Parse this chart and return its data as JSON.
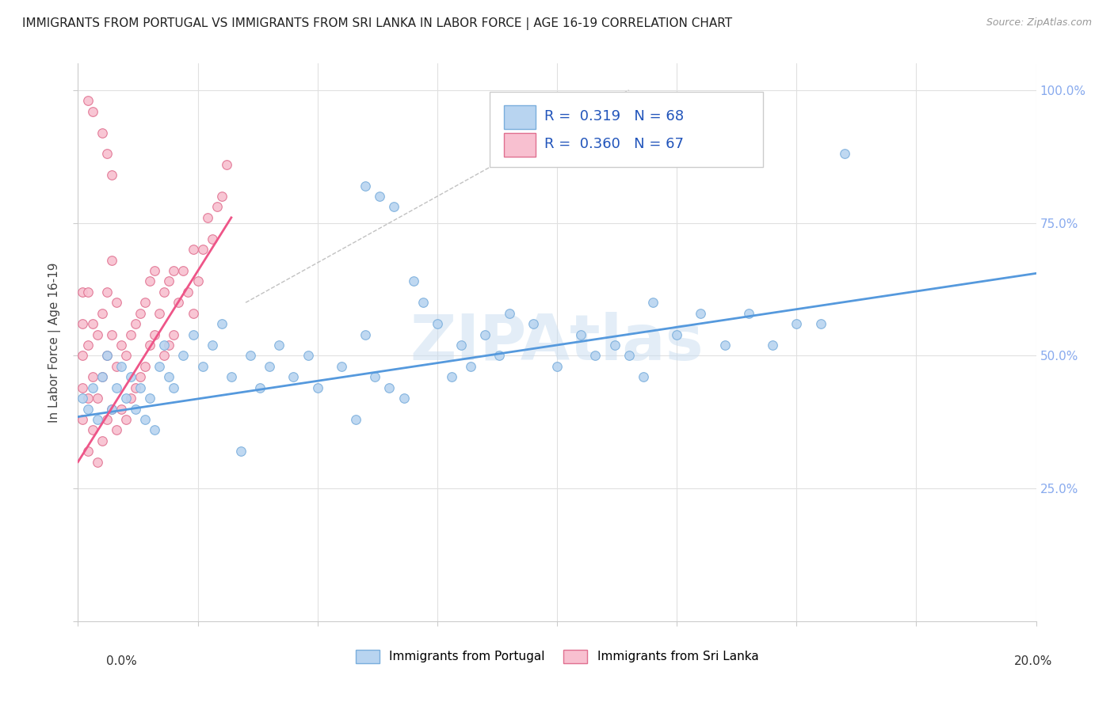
{
  "title": "IMMIGRANTS FROM PORTUGAL VS IMMIGRANTS FROM SRI LANKA IN LABOR FORCE | AGE 16-19 CORRELATION CHART",
  "source": "Source: ZipAtlas.com",
  "ylabel": "In Labor Force | Age 16-19",
  "xlim": [
    0.0,
    0.2
  ],
  "ylim": [
    0.0,
    1.05
  ],
  "watermark": "ZIPAtlas",
  "legend_box": {
    "portugal_color": "#b8d4f0",
    "portugal_edge": "#7aaedc",
    "srilanka_color": "#f8c0d0",
    "srilanka_edge": "#e07090",
    "R_portugal": 0.319,
    "N_portugal": 68,
    "R_srilanka": 0.36,
    "N_srilanka": 67
  },
  "blue_line": {
    "x0": 0.0,
    "y0": 0.385,
    "x1": 0.2,
    "y1": 0.655
  },
  "pink_line": {
    "x0": 0.0,
    "y0": 0.3,
    "x1": 0.032,
    "y1": 0.76
  },
  "dashed_line": {
    "x0": 0.035,
    "y0": 0.6,
    "x1": 0.115,
    "y1": 1.0
  },
  "portugal_scatter_x": [
    0.001,
    0.002,
    0.003,
    0.004,
    0.005,
    0.006,
    0.007,
    0.008,
    0.009,
    0.01,
    0.011,
    0.012,
    0.013,
    0.014,
    0.015,
    0.016,
    0.017,
    0.018,
    0.019,
    0.02,
    0.022,
    0.024,
    0.026,
    0.028,
    0.03,
    0.032,
    0.034,
    0.036,
    0.038,
    0.04,
    0.042,
    0.045,
    0.048,
    0.05,
    0.055,
    0.058,
    0.06,
    0.062,
    0.065,
    0.068,
    0.07,
    0.072,
    0.075,
    0.078,
    0.08,
    0.082,
    0.085,
    0.088,
    0.09,
    0.095,
    0.1,
    0.105,
    0.108,
    0.112,
    0.115,
    0.118,
    0.12,
    0.125,
    0.13,
    0.135,
    0.06,
    0.063,
    0.066,
    0.14,
    0.145,
    0.15,
    0.155,
    0.16
  ],
  "portugal_scatter_y": [
    0.42,
    0.4,
    0.44,
    0.38,
    0.46,
    0.5,
    0.4,
    0.44,
    0.48,
    0.42,
    0.46,
    0.4,
    0.44,
    0.38,
    0.42,
    0.36,
    0.48,
    0.52,
    0.46,
    0.44,
    0.5,
    0.54,
    0.48,
    0.52,
    0.56,
    0.46,
    0.32,
    0.5,
    0.44,
    0.48,
    0.52,
    0.46,
    0.5,
    0.44,
    0.48,
    0.38,
    0.54,
    0.46,
    0.44,
    0.42,
    0.64,
    0.6,
    0.56,
    0.46,
    0.52,
    0.48,
    0.54,
    0.5,
    0.58,
    0.56,
    0.48,
    0.54,
    0.5,
    0.52,
    0.5,
    0.46,
    0.6,
    0.54,
    0.58,
    0.52,
    0.82,
    0.8,
    0.78,
    0.58,
    0.52,
    0.56,
    0.56,
    0.88
  ],
  "srilanka_scatter_x": [
    0.001,
    0.001,
    0.001,
    0.001,
    0.001,
    0.002,
    0.002,
    0.002,
    0.002,
    0.003,
    0.003,
    0.003,
    0.004,
    0.004,
    0.004,
    0.005,
    0.005,
    0.005,
    0.006,
    0.006,
    0.006,
    0.007,
    0.007,
    0.007,
    0.008,
    0.008,
    0.008,
    0.009,
    0.009,
    0.01,
    0.01,
    0.011,
    0.011,
    0.012,
    0.012,
    0.013,
    0.013,
    0.014,
    0.014,
    0.015,
    0.015,
    0.016,
    0.016,
    0.017,
    0.018,
    0.018,
    0.019,
    0.019,
    0.02,
    0.02,
    0.021,
    0.022,
    0.023,
    0.024,
    0.024,
    0.025,
    0.026,
    0.027,
    0.028,
    0.029,
    0.03,
    0.031,
    0.003,
    0.005,
    0.006,
    0.007,
    0.002
  ],
  "srilanka_scatter_y": [
    0.38,
    0.44,
    0.5,
    0.56,
    0.62,
    0.32,
    0.42,
    0.52,
    0.62,
    0.36,
    0.46,
    0.56,
    0.3,
    0.42,
    0.54,
    0.34,
    0.46,
    0.58,
    0.38,
    0.5,
    0.62,
    0.4,
    0.54,
    0.68,
    0.36,
    0.48,
    0.6,
    0.4,
    0.52,
    0.38,
    0.5,
    0.42,
    0.54,
    0.44,
    0.56,
    0.46,
    0.58,
    0.48,
    0.6,
    0.52,
    0.64,
    0.54,
    0.66,
    0.58,
    0.5,
    0.62,
    0.52,
    0.64,
    0.54,
    0.66,
    0.6,
    0.66,
    0.62,
    0.58,
    0.7,
    0.64,
    0.7,
    0.76,
    0.72,
    0.78,
    0.8,
    0.86,
    0.96,
    0.92,
    0.88,
    0.84,
    0.98
  ],
  "portugal_color": "#b8d4f0",
  "srilanka_color": "#f8c0d0",
  "portugal_edge": "#7aaedc",
  "srilanka_edge": "#e07090",
  "background_color": "#ffffff",
  "grid_color": "#e0e0e0",
  "right_tick_color": "#88aaee"
}
